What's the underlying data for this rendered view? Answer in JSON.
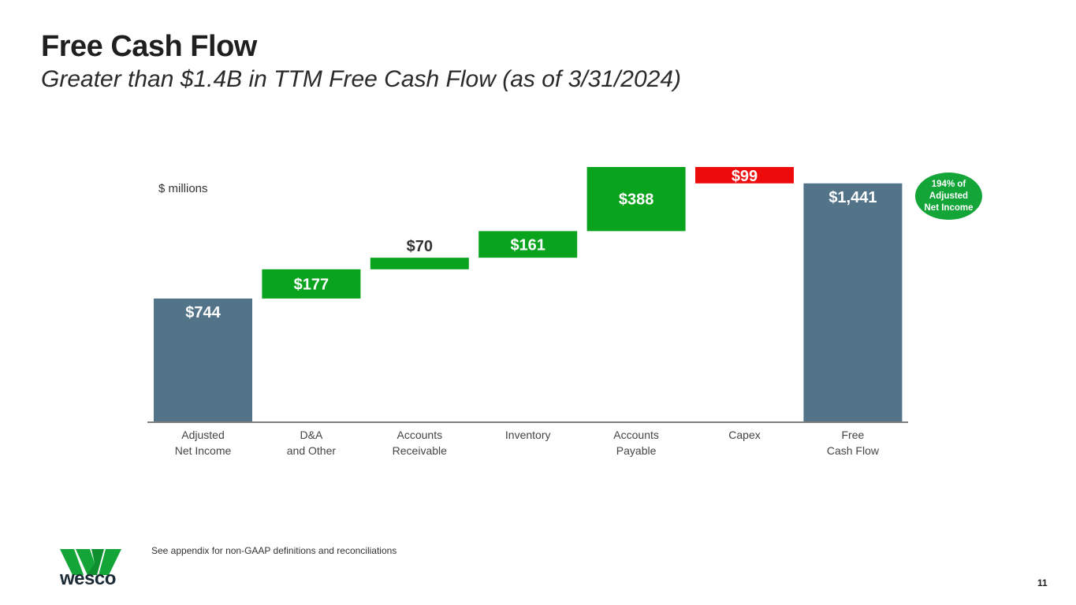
{
  "header": {
    "title": "Free Cash Flow",
    "subtitle": "Greater than $1.4B in TTM Free Cash Flow (as of 3/31/2024)"
  },
  "units_label": "$ millions",
  "badge": {
    "text": "194% of\nAdjusted\nNet Income",
    "color": "#13a538"
  },
  "footnote": "See appendix for non-GAAP definitions and reconciliations",
  "page_number": "11",
  "logo": {
    "text": "wesco",
    "color": "#13a538"
  },
  "colors": {
    "total": "#527388",
    "increase": "#0aa31e",
    "decrease": "#ee0b0b",
    "axis": "#7f7f7f"
  },
  "chart_data": {
    "type": "waterfall",
    "title": "Free Cash Flow",
    "ylabel": "$ millions",
    "categories": [
      "Adjusted\nNet Income",
      "D&A\nand Other",
      "Accounts\nReceivable",
      "Inventory",
      "Accounts\nPayable",
      "Capex",
      "Free\nCash Flow"
    ],
    "values": [
      744,
      177,
      70,
      161,
      388,
      -99,
      1441
    ],
    "kinds": [
      "total",
      "increase",
      "increase",
      "increase",
      "increase",
      "decrease",
      "total"
    ],
    "labels": [
      "$744",
      "$177",
      "$70",
      "$161",
      "$388",
      "$99",
      "$1,441"
    ],
    "ylim": [
      0,
      1540
    ]
  }
}
